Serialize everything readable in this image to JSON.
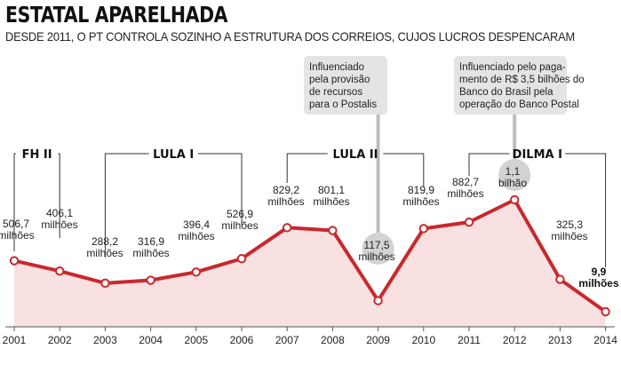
{
  "title": "ESTATAL APARELHADA",
  "subtitle": "DESDE 2011, O PT CONTROLA SOZINHO A ESTRUTURA DOS CORREIOS, CUJOS LUCROS DESPENCARAM",
  "chart_data": {
    "type": "area",
    "title": "ESTATAL APARELHADA",
    "subtitle": "DESDE 2011, O PT CONTROLA SOZINHO A ESTRUTURA DOS CORREIOS, CUJOS LUCROS DESPENCARAM",
    "xlabel": "",
    "ylabel": "",
    "x": [
      "2001",
      "2002",
      "2003",
      "2004",
      "2005",
      "2006",
      "2007",
      "2008",
      "2009",
      "2010",
      "2011",
      "2012",
      "2013",
      "2014"
    ],
    "values": [
      506.7,
      406.1,
      288.2,
      316.9,
      396.4,
      526.9,
      829.2,
      801.1,
      117.5,
      819.9,
      882.7,
      1100,
      325.3,
      9.9
    ],
    "labels": [
      [
        "506,7",
        "milhões"
      ],
      [
        "406,1",
        "milhões"
      ],
      [
        "288,2",
        "milhões"
      ],
      [
        "316,9",
        "milhões"
      ],
      [
        "396,4",
        "milhões"
      ],
      [
        "526,9",
        "milhões"
      ],
      [
        "829,2",
        "milhões"
      ],
      [
        "801,1",
        "milhões"
      ],
      [
        "117,5",
        "milhões"
      ],
      [
        "819,9",
        "milhões"
      ],
      [
        "882,7",
        "milhões"
      ],
      [
        "1,1",
        "bilhão"
      ],
      [
        "325,3",
        "milhões"
      ],
      [
        "9,9",
        "milhões"
      ]
    ],
    "unit": "R$ milhões",
    "periods": [
      {
        "name": "FH II",
        "from": "2001",
        "to": "2002"
      },
      {
        "name": "LULA I",
        "from": "2003",
        "to": "2006"
      },
      {
        "name": "LULA II",
        "from": "2007",
        "to": "2010"
      },
      {
        "name": "DILMA I",
        "from": "2011",
        "to": "2014"
      }
    ],
    "annotations": [
      {
        "year": "2009",
        "lines": [
          "Influenciado",
          "pela provisão",
          "de recursos",
          "para o Postalis"
        ]
      },
      {
        "year": "2012",
        "lines": [
          "Influenciado pelo paga-",
          "mento de R$ 3,5 bilhões do",
          "Banco do Brasil pela",
          "operação do Banco Postal"
        ]
      }
    ],
    "colors": {
      "line": "#c8282d",
      "fill": "#f9e1e1",
      "box": "#e4e4e4",
      "circle": "#d3d3d3"
    }
  }
}
